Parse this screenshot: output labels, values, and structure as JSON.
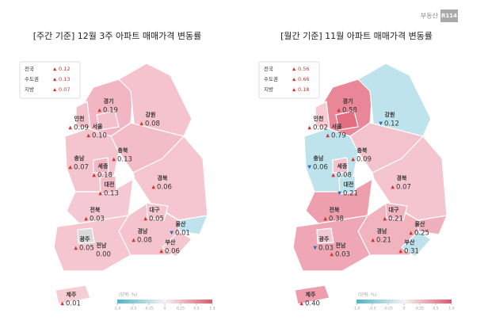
{
  "brand": {
    "name": "부동산",
    "badge": "R114"
  },
  "maps": [
    {
      "title": "[주간 기준] 12월 3주 아파트 매매가격 변동률",
      "summary": [
        {
          "label": "전국",
          "arrow": "▲",
          "value": 0.12
        },
        {
          "label": "수도권",
          "arrow": "▲",
          "value": 0.13
        },
        {
          "label": "지방",
          "arrow": "▲",
          "value": 0.07
        }
      ],
      "regions": [
        {
          "name": "경기",
          "arrow": "▲",
          "value": 0.19
        },
        {
          "name": "강원",
          "arrow": "▲",
          "value": 0.08
        },
        {
          "name": "인천",
          "arrow": "▲",
          "value": 0.09
        },
        {
          "name": "서울",
          "arrow": "▲",
          "value": 0.1,
          "value_label": "0.10"
        },
        {
          "name": "충북",
          "arrow": "▲",
          "value": 0.13
        },
        {
          "name": "충남",
          "arrow": "▲",
          "value": 0.07
        },
        {
          "name": "세종",
          "arrow": "▲",
          "value": 0.18
        },
        {
          "name": "대전",
          "arrow": "▲",
          "value": 0.13
        },
        {
          "name": "경북",
          "arrow": "▲",
          "value": 0.06
        },
        {
          "name": "전북",
          "arrow": "▲",
          "value": 0.03
        },
        {
          "name": "대구",
          "arrow": "▲",
          "value": 0.05
        },
        {
          "name": "울산",
          "arrow": "▼",
          "value": 0.01
        },
        {
          "name": "경남",
          "arrow": "▲",
          "value": 0.08
        },
        {
          "name": "광주",
          "arrow": "▲",
          "value": 0.05
        },
        {
          "name": "전남",
          "arrow": "",
          "value": 0,
          "value_label": "0.00"
        },
        {
          "name": "부산",
          "arrow": "▲",
          "value": 0.06
        },
        {
          "name": "제주",
          "arrow": "▲",
          "value": 0.01
        }
      ],
      "unit": "(단위: %)",
      "scale_ticks": [
        {
          "value": -1,
          "label": "-1.0"
        },
        -0.5,
        -0.25,
        0,
        0.25,
        0.5,
        {
          "value": 1,
          "label": "1.0"
        }
      ]
    },
    {
      "title": "[월간 기준] 11월 아파트 매매가격 변동률",
      "summary": [
        {
          "label": "전국",
          "arrow": "▲",
          "value": 0.56
        },
        {
          "label": "수도권",
          "arrow": "▲",
          "value": 0.66
        },
        {
          "label": "지방",
          "arrow": "▲",
          "value": 0.18
        }
      ],
      "regions": [
        {
          "name": "경기",
          "arrow": "▲",
          "value": 0.58
        },
        {
          "name": "강원",
          "arrow": "▼",
          "value": 0.12
        },
        {
          "name": "인천",
          "arrow": "▲",
          "value": 0.02
        },
        {
          "name": "서울",
          "arrow": "▲",
          "value": 0.79
        },
        {
          "name": "충북",
          "arrow": "▲",
          "value": 0.09
        },
        {
          "name": "충남",
          "arrow": "▼",
          "value": 0.06
        },
        {
          "name": "세종",
          "arrow": "▲",
          "value": 0.08
        },
        {
          "name": "대전",
          "arrow": "▼",
          "value": 0.21
        },
        {
          "name": "경북",
          "arrow": "▲",
          "value": 0.07
        },
        {
          "name": "전북",
          "arrow": "▲",
          "value": 0.38
        },
        {
          "name": "대구",
          "arrow": "▲",
          "value": 0.21
        },
        {
          "name": "울산",
          "arrow": "▲",
          "value": 0.25
        },
        {
          "name": "경남",
          "arrow": "▲",
          "value": 0.21
        },
        {
          "name": "광주",
          "arrow": "▼",
          "value": 0.03
        },
        {
          "name": "전남",
          "arrow": "▲",
          "value": 0.03
        },
        {
          "name": "부산",
          "arrow": "▲",
          "value": 0.31
        },
        {
          "name": "제주",
          "arrow": "▲",
          "value": 0.4,
          "value_label": "0.40"
        }
      ],
      "unit": "(단위: %)",
      "scale_ticks": [
        {
          "value": -1,
          "label": "-1.0"
        },
        -0.5,
        -0.25,
        0,
        0.25,
        0.5,
        {
          "value": 1,
          "label": "1.0"
        }
      ]
    }
  ]
}
